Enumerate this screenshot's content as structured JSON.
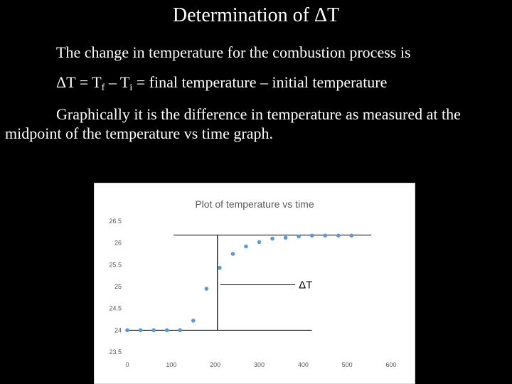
{
  "slide": {
    "title": "Determination of ΔT",
    "line1": "The change in temperature for the combustion process is",
    "line2": {
      "a": "ΔT = T",
      "sub_f": "f",
      "b": " – T",
      "sub_i": "i",
      "c": " = final temperature – initial temperature"
    },
    "line3": "Graphically it is the difference in temperature as measured at the",
    "line4": "midpoint of the temperature vs time graph."
  },
  "chart_data": {
    "type": "scatter",
    "title": "Plot of temperature vs time",
    "xlabel": "",
    "ylabel": "",
    "xlim": [
      0,
      600
    ],
    "ylim": [
      23.5,
      26.5
    ],
    "x_ticks": [
      "0",
      "100",
      "200",
      "300",
      "400",
      "500",
      "600"
    ],
    "y_ticks": [
      "23.5",
      "24",
      "24.5",
      "25",
      "25.5",
      "26",
      "26.5"
    ],
    "grid": false,
    "point_color": "#5B9BD5",
    "x": [
      0,
      30,
      60,
      90,
      120,
      150,
      180,
      210,
      240,
      270,
      300,
      330,
      360,
      390,
      420,
      450,
      480,
      510
    ],
    "y": [
      24.0,
      24.0,
      24.0,
      24.0,
      24.0,
      24.22,
      24.95,
      25.43,
      25.75,
      25.92,
      26.02,
      26.1,
      26.12,
      26.15,
      26.17,
      26.17,
      26.17,
      26.17
    ],
    "annotation": {
      "label": "ΔT",
      "final_temperature": 26.18,
      "initial_temperature": 24.0,
      "midpoint_time": 205
    }
  }
}
